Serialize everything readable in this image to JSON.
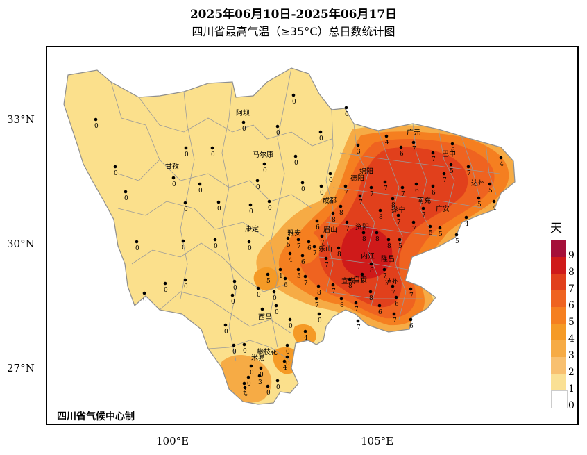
{
  "title": "2025年06月10日-2025年06月17日",
  "subtitle": "四川省最高气温（≥35°C）总日数统计图",
  "credit": "四川省气候中心制",
  "legend": {
    "title": "天",
    "levels": [
      {
        "label": "9",
        "color": "#a50f3a"
      },
      {
        "label": "8",
        "color": "#cf1a1a"
      },
      {
        "label": "7",
        "color": "#e1401c"
      },
      {
        "label": "6",
        "color": "#ef6320"
      },
      {
        "label": "5",
        "color": "#f57f20"
      },
      {
        "label": "4",
        "color": "#f59a26"
      },
      {
        "label": "3",
        "color": "#f6ab45"
      },
      {
        "label": "2",
        "color": "#f8c070"
      },
      {
        "label": "1",
        "color": "#fae094"
      },
      {
        "label": "0",
        "color": "#ffffff"
      }
    ]
  },
  "axes": {
    "y_ticks": [
      "33°N",
      "30°N",
      "27°N"
    ],
    "x_ticks": [
      "100°E",
      "105°E"
    ]
  },
  "cities": [
    "阿坝",
    "甘孜",
    "马尔康",
    "康定",
    "雅安",
    "眉山",
    "乐山",
    "西昌",
    "攀枝花",
    "米易",
    "绵阳",
    "德阳",
    "成都",
    "资阳",
    "遂宁",
    "南充",
    "广安",
    "巴中",
    "广元",
    "达州",
    "内江",
    "自贡",
    "宜宾",
    "泸州",
    "隆昌",
    "遂宁"
  ],
  "colors": {
    "base_fill": "#fbe08c",
    "border": "#8e8e8e"
  }
}
